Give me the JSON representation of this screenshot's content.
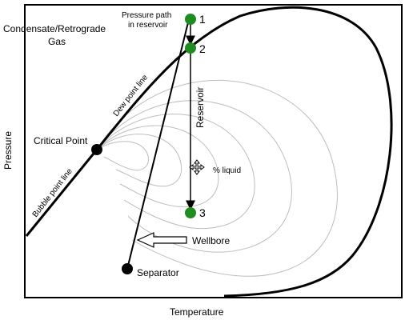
{
  "labels": {
    "region": "Condensate/Retrograde",
    "region_line2": "Gas",
    "path_title": "Pressure path",
    "path_title_line2": "in reservoir",
    "critical_point": "Critical Point",
    "dew_point_line": "Dew point line",
    "bubble_point_line": "Bubble point line",
    "reservoir": "Reservoir",
    "percent_liquid": "% liquid",
    "wellbore": "Wellbore",
    "separator": "Separator"
  },
  "points": {
    "p1": "1",
    "p2": "2",
    "p3": "3"
  },
  "axes": {
    "x": "Temperature",
    "y": "Pressure"
  },
  "colors": {
    "state_point": "#1e8c1e",
    "critical_point": "#000000",
    "separator": "#000000",
    "quality_lines": "#bdbdbd",
    "envelope": "#000000"
  },
  "icons": {
    "cursor": "move-cursor-icon",
    "wellbore_arrow": "hollow-arrow-left-icon"
  }
}
